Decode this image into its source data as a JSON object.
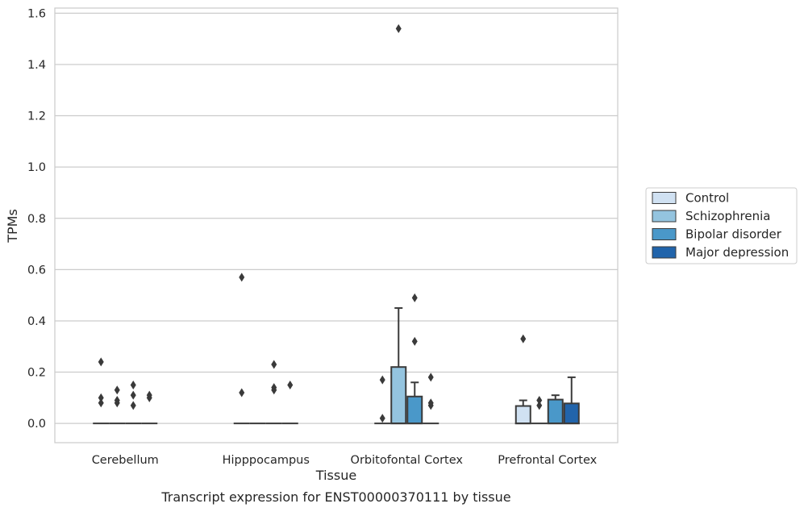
{
  "chart_data": {
    "type": "box",
    "ylabel": "TPMs",
    "xlabel": "Tissue",
    "caption": "Transcript expression for ENST00000370111 by tissue",
    "ylim": [
      -0.075,
      1.62
    ],
    "yticks": [
      "0.0",
      "0.2",
      "0.4",
      "0.6",
      "0.8",
      "1.0",
      "1.2",
      "1.4",
      "1.6"
    ],
    "grid": true,
    "legend_position": "right",
    "categories": [
      "Cerebellum",
      "Hipppocampus",
      "Orbitofontal Cortex",
      "Prefrontal Cortex"
    ],
    "series": [
      {
        "name": "Control",
        "color": "#d0e1f2"
      },
      {
        "name": "Schizophrenia",
        "color": "#94c4df"
      },
      {
        "name": "Bipolar disorder",
        "color": "#4a98c9"
      },
      {
        "name": "Major depression",
        "color": "#2164ab"
      }
    ],
    "boxes": [
      [
        {
          "q1": 0,
          "median": 0,
          "q3": 0,
          "whisker_high": 0,
          "outliers": [
            0.08,
            0.1,
            0.24
          ]
        },
        {
          "q1": 0,
          "median": 0,
          "q3": 0,
          "whisker_high": 0,
          "outliers": [
            0.08,
            0.09,
            0.13
          ]
        },
        {
          "q1": 0,
          "median": 0,
          "q3": 0,
          "whisker_high": 0,
          "outliers": [
            0.07,
            0.11,
            0.15
          ]
        },
        {
          "q1": 0,
          "median": 0,
          "q3": 0,
          "whisker_high": 0,
          "outliers": [
            0.1,
            0.11
          ]
        }
      ],
      [
        {
          "q1": 0,
          "median": 0,
          "q3": 0,
          "whisker_high": 0,
          "outliers": [
            0.12,
            0.57
          ]
        },
        {
          "q1": 0,
          "median": 0,
          "q3": 0,
          "whisker_high": 0,
          "outliers": []
        },
        {
          "q1": 0,
          "median": 0,
          "q3": 0,
          "whisker_high": 0,
          "outliers": [
            0.13,
            0.14,
            0.23
          ]
        },
        {
          "q1": 0,
          "median": 0,
          "q3": 0,
          "whisker_high": 0,
          "outliers": [
            0.15
          ]
        }
      ],
      [
        {
          "q1": 0,
          "median": 0,
          "q3": 0,
          "whisker_high": 0,
          "outliers": [
            0.02,
            0.17
          ]
        },
        {
          "q1": 0,
          "median": 0,
          "q3": 0.22,
          "whisker_high": 0.45,
          "outliers": [
            1.54
          ]
        },
        {
          "q1": 0,
          "median": 0,
          "q3": 0.105,
          "whisker_high": 0.16,
          "outliers": [
            0.32,
            0.49
          ]
        },
        {
          "q1": 0,
          "median": 0,
          "q3": 0,
          "whisker_high": 0,
          "outliers": [
            0.07,
            0.08,
            0.18
          ]
        }
      ],
      [
        {
          "q1": 0,
          "median": 0,
          "q3": 0.068,
          "whisker_high": 0.09,
          "outliers": [
            0.33
          ]
        },
        {
          "q1": 0,
          "median": 0,
          "q3": 0,
          "whisker_high": 0,
          "outliers": [
            0.07,
            0.09
          ]
        },
        {
          "q1": 0,
          "median": 0,
          "q3": 0.093,
          "whisker_high": 0.11,
          "outliers": []
        },
        {
          "q1": 0,
          "median": 0,
          "q3": 0.078,
          "whisker_high": 0.18,
          "outliers": []
        }
      ]
    ]
  }
}
